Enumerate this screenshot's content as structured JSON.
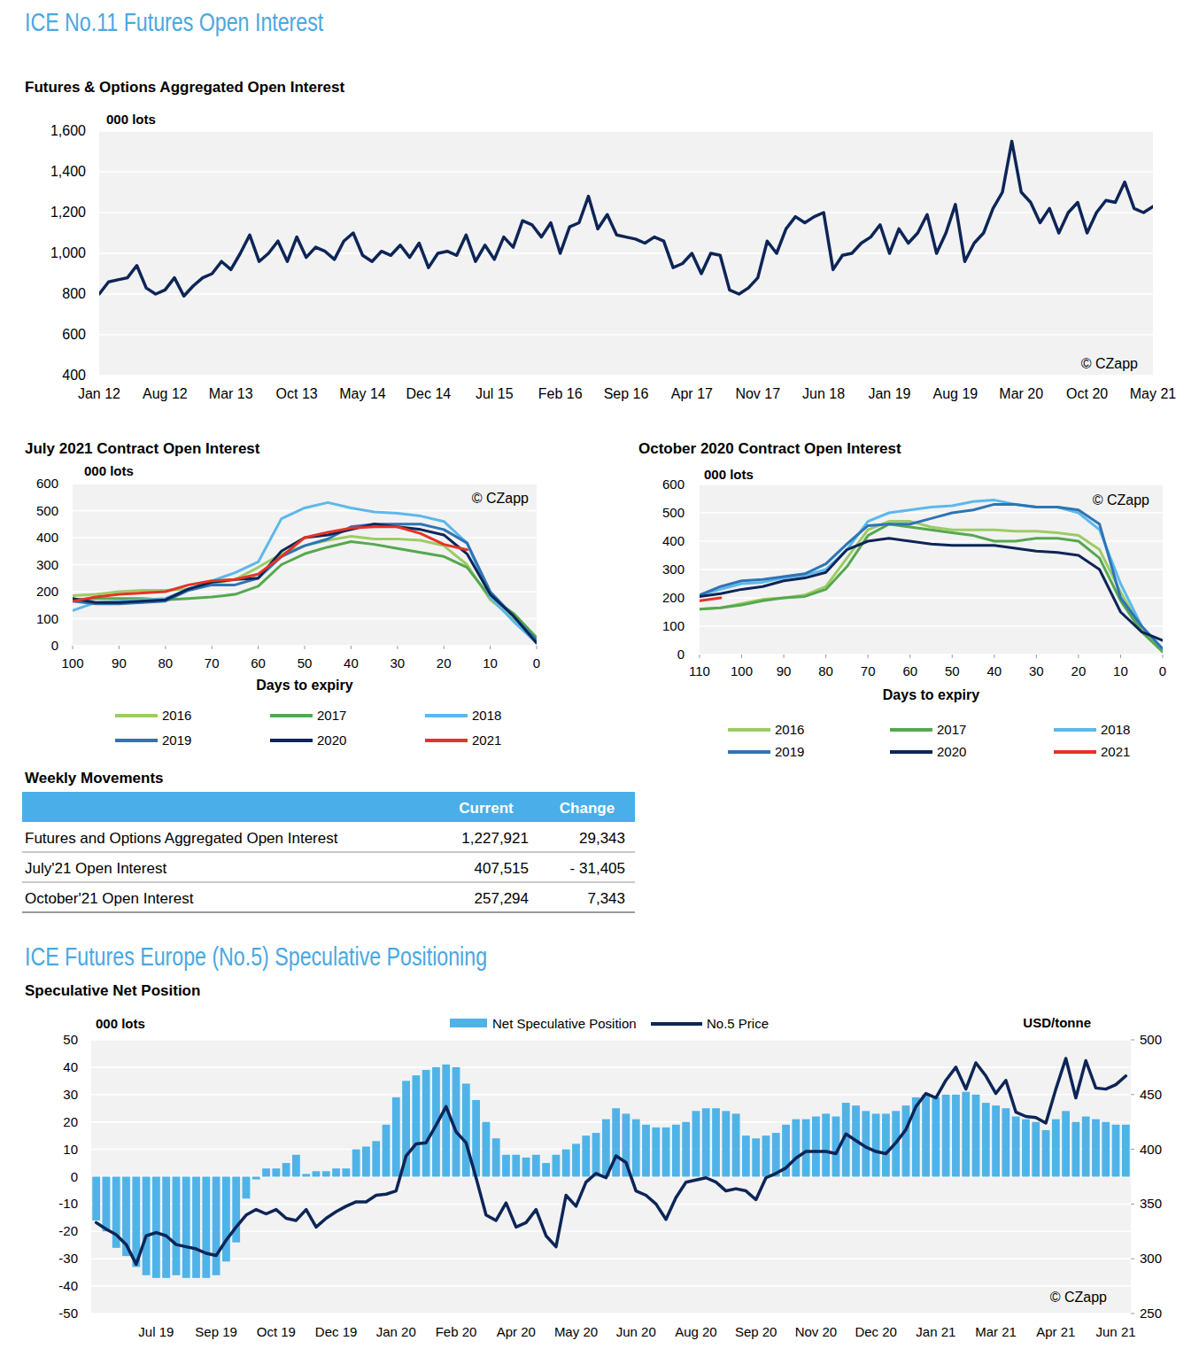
{
  "headings": [
    "ICE No.11 Futures Open Interest",
    "ICE Futures Europe (No.5) Speculative Positioning"
  ],
  "chart_data": [
    {
      "type": "line",
      "title": "Futures & Options Aggregated Open Interest",
      "y_label": "000 lots",
      "annotations": [
        "© CZapp"
      ],
      "categories": [
        "Jan 12",
        null,
        null,
        null,
        null,
        null,
        null,
        "Aug 12",
        null,
        null,
        null,
        null,
        null,
        null,
        "Mar 13",
        null,
        null,
        null,
        null,
        null,
        null,
        "Oct 13",
        null,
        null,
        null,
        null,
        null,
        null,
        "May 14",
        null,
        null,
        null,
        null,
        null,
        null,
        "Dec 14",
        null,
        null,
        null,
        null,
        null,
        null,
        "Jul 15",
        null,
        null,
        null,
        null,
        null,
        null,
        "Feb 16",
        null,
        null,
        null,
        null,
        null,
        null,
        "Sep 16",
        null,
        null,
        null,
        null,
        null,
        null,
        "Apr 17",
        null,
        null,
        null,
        null,
        null,
        null,
        "Nov 17",
        null,
        null,
        null,
        null,
        null,
        null,
        "Jun 18",
        null,
        null,
        null,
        null,
        null,
        null,
        "Jan 19",
        null,
        null,
        null,
        null,
        null,
        null,
        "Aug 19",
        null,
        null,
        null,
        null,
        null,
        null,
        "Mar 20",
        null,
        null,
        null,
        null,
        null,
        null,
        "Oct 20",
        null,
        null,
        null,
        null,
        null,
        null,
        "May 21"
      ],
      "values": [
        800,
        860,
        870,
        880,
        940,
        830,
        800,
        820,
        880,
        790,
        840,
        880,
        900,
        960,
        920,
        1000,
        1090,
        960,
        1000,
        1060,
        960,
        1080,
        980,
        1030,
        1010,
        970,
        1060,
        1100,
        990,
        960,
        1010,
        990,
        1040,
        980,
        1050,
        930,
        1000,
        1010,
        990,
        1090,
        960,
        1040,
        970,
        1080,
        1030,
        1160,
        1140,
        1080,
        1150,
        1000,
        1130,
        1150,
        1280,
        1120,
        1190,
        1090,
        1080,
        1070,
        1050,
        1080,
        1060,
        930,
        950,
        1000,
        900,
        1000,
        990,
        820,
        800,
        830,
        880,
        1060,
        1000,
        1120,
        1180,
        1150,
        1180,
        1200,
        920,
        990,
        1000,
        1050,
        1080,
        1140,
        1000,
        1120,
        1050,
        1100,
        1190,
        1000,
        1100,
        1240,
        960,
        1050,
        1100,
        1220,
        1300,
        1550,
        1300,
        1250,
        1150,
        1220,
        1100,
        1200,
        1250,
        1100,
        1200,
        1260,
        1250,
        1350,
        1220,
        1200,
        1230
      ],
      "color": "#0d2557",
      "ylim": [
        400,
        1600
      ],
      "yticks": [
        400,
        600,
        800,
        {
          "value": 1000,
          "label": "1,000"
        },
        {
          "value": 1200,
          "label": "1,200"
        },
        {
          "value": 1400,
          "label": "1,400"
        },
        {
          "value": 1600,
          "label": "1,600"
        }
      ],
      "grid": true
    },
    {
      "type": "line",
      "title": "July 2021 Contract Open Interest",
      "y_label": "000 lots",
      "x_label": "Days to expiry",
      "annotations": [
        "© CZapp"
      ],
      "x": [
        100,
        95,
        90,
        85,
        80,
        75,
        70,
        65,
        60,
        55,
        50,
        45,
        40,
        35,
        30,
        25,
        20,
        15,
        10,
        5,
        0
      ],
      "xlim": [
        100,
        0
      ],
      "xticks": [
        100,
        90,
        80,
        70,
        60,
        50,
        40,
        30,
        20,
        10,
        0
      ],
      "ylim": [
        0,
        600
      ],
      "yticks": [
        0,
        100,
        200,
        300,
        400,
        500,
        600
      ],
      "grid": true,
      "legend": "bottom",
      "series": [
        {
          "name": "2016",
          "color": "#9ccc65",
          "values": [
            185,
            190,
            200,
            205,
            205,
            210,
            230,
            245,
            290,
            340,
            370,
            390,
            405,
            395,
            395,
            390,
            370,
            300,
            170,
            100,
            30
          ]
        },
        {
          "name": "2017",
          "color": "#55a84f",
          "values": [
            170,
            175,
            175,
            175,
            170,
            175,
            180,
            190,
            220,
            300,
            340,
            365,
            385,
            375,
            360,
            345,
            330,
            290,
            180,
            120,
            30
          ]
        },
        {
          "name": "2018",
          "color": "#5db8ec",
          "values": [
            130,
            160,
            165,
            170,
            175,
            210,
            240,
            270,
            310,
            470,
            510,
            530,
            510,
            495,
            490,
            480,
            460,
            380,
            180,
            90,
            10
          ]
        },
        {
          "name": "2019",
          "color": "#2e74b5",
          "values": [
            165,
            155,
            155,
            160,
            165,
            205,
            225,
            225,
            250,
            330,
            370,
            395,
            440,
            450,
            450,
            450,
            430,
            380,
            200,
            110,
            20
          ]
        },
        {
          "name": "2020",
          "color": "#0d2557",
          "values": [
            175,
            160,
            160,
            165,
            170,
            210,
            235,
            245,
            250,
            350,
            400,
            410,
            430,
            450,
            440,
            430,
            410,
            340,
            190,
            110,
            10
          ]
        },
        {
          "name": "2021",
          "color": "#e53325",
          "values": [
            165,
            180,
            190,
            195,
            200,
            225,
            240,
            245,
            265,
            330,
            400,
            420,
            435,
            440,
            440,
            415,
            375,
            355,
            null,
            null,
            null
          ]
        }
      ]
    },
    {
      "type": "line",
      "title": "October 2020 Contract Open Interest",
      "y_label": "000 lots",
      "x_label": "Days to expiry",
      "annotations": [
        "© CZapp"
      ],
      "x": [
        110,
        105,
        100,
        95,
        90,
        85,
        80,
        75,
        70,
        65,
        60,
        55,
        50,
        45,
        40,
        35,
        30,
        25,
        20,
        15,
        10,
        5,
        0
      ],
      "xlim": [
        110,
        0
      ],
      "xticks": [
        110,
        100,
        90,
        80,
        70,
        60,
        50,
        40,
        30,
        20,
        10,
        0
      ],
      "ylim": [
        0,
        600
      ],
      "yticks": [
        0,
        100,
        200,
        300,
        400,
        500,
        600
      ],
      "grid": true,
      "legend": "bottom",
      "series": [
        {
          "name": "2016",
          "color": "#9ccc65",
          "values": [
            160,
            165,
            180,
            195,
            200,
            210,
            240,
            340,
            440,
            470,
            470,
            450,
            440,
            440,
            440,
            435,
            435,
            430,
            420,
            370,
            220,
            90,
            10
          ]
        },
        {
          "name": "2017",
          "color": "#55a84f",
          "values": [
            160,
            165,
            175,
            190,
            200,
            205,
            230,
            310,
            420,
            460,
            450,
            440,
            430,
            420,
            400,
            400,
            410,
            410,
            400,
            340,
            190,
            80,
            10
          ]
        },
        {
          "name": "2018",
          "color": "#5db8ec",
          "values": [
            210,
            230,
            250,
            255,
            270,
            280,
            300,
            370,
            470,
            500,
            510,
            520,
            525,
            540,
            545,
            530,
            520,
            520,
            500,
            440,
            250,
            100,
            20
          ]
        },
        {
          "name": "2019",
          "color": "#2e74b5",
          "values": [
            210,
            240,
            260,
            265,
            275,
            285,
            320,
            390,
            455,
            460,
            460,
            480,
            500,
            510,
            530,
            530,
            520,
            520,
            510,
            460,
            200,
            100,
            20
          ]
        },
        {
          "name": "2020",
          "color": "#0d2557",
          "values": [
            205,
            215,
            230,
            240,
            260,
            270,
            290,
            370,
            400,
            410,
            400,
            390,
            385,
            385,
            385,
            375,
            365,
            360,
            350,
            300,
            150,
            80,
            50
          ]
        },
        {
          "name": "2021",
          "color": "#e53325",
          "values": [
            190,
            200,
            null,
            null,
            null,
            null,
            null,
            null,
            null,
            null,
            null,
            null,
            null,
            null,
            null,
            null,
            null,
            null,
            null,
            null,
            null,
            null,
            null
          ]
        }
      ]
    },
    {
      "type": "bar",
      "title": "Speculative Net Position",
      "y_label": "000 lots",
      "y2_label": "USD/tonne",
      "annotations": [
        "© CZapp"
      ],
      "categories": [
        null,
        null,
        null,
        null,
        null,
        null,
        "Jul 19",
        null,
        null,
        null,
        null,
        null,
        "Sep 19",
        null,
        null,
        null,
        null,
        null,
        "Oct 19",
        null,
        null,
        null,
        null,
        null,
        "Dec 19",
        null,
        null,
        null,
        null,
        null,
        "Jan 20",
        null,
        null,
        null,
        null,
        null,
        "Feb 20",
        null,
        null,
        null,
        null,
        null,
        "Apr 20",
        null,
        null,
        null,
        null,
        null,
        "May 20",
        null,
        null,
        null,
        null,
        null,
        "Jun 20",
        null,
        null,
        null,
        null,
        null,
        "Aug 20",
        null,
        null,
        null,
        null,
        null,
        "Sep 20",
        null,
        null,
        null,
        null,
        null,
        "Nov 20",
        null,
        null,
        null,
        null,
        null,
        "Dec 20",
        null,
        null,
        null,
        null,
        null,
        "Jan 21",
        null,
        null,
        null,
        null,
        null,
        "Mar 21",
        null,
        null,
        null,
        null,
        null,
        "Apr 21",
        null,
        null,
        null,
        null,
        null,
        "Jun 21",
        null
      ],
      "series": [
        {
          "name": "Net Speculative Position",
          "type": "bar",
          "color": "#4fb3e8",
          "values": [
            -16,
            -20,
            -26,
            -29,
            -33,
            -36,
            -37,
            -37,
            -36,
            -37,
            -37,
            -37,
            -36,
            -31,
            -24,
            -8,
            -1,
            3,
            3,
            5,
            8,
            1,
            2,
            2,
            3,
            3,
            10,
            11,
            13,
            19,
            29,
            35,
            37,
            39,
            40,
            41,
            40,
            34,
            28,
            20,
            14,
            8,
            8,
            7,
            8,
            5,
            8,
            10,
            12,
            15,
            16,
            21,
            25,
            23,
            21,
            19,
            18,
            18,
            19,
            20,
            24,
            25,
            25,
            24,
            23,
            15,
            14,
            15,
            16,
            19,
            21,
            21,
            22,
            23,
            22,
            27,
            26,
            24,
            23,
            23,
            24,
            26,
            29,
            30,
            29,
            30,
            30,
            31,
            30,
            27,
            26,
            25,
            22,
            21,
            20,
            17,
            21,
            24,
            20,
            22,
            21,
            20,
            19,
            19
          ]
        },
        {
          "name": "No.5 Price",
          "type": "line",
          "color": "#0d2557",
          "axis": "y2",
          "values": [
            333,
            327,
            322,
            313,
            295,
            321,
            324,
            321,
            313,
            311,
            309,
            305,
            303,
            317,
            329,
            340,
            345,
            341,
            345,
            337,
            335,
            345,
            329,
            337,
            343,
            348,
            352,
            352,
            358,
            359,
            362,
            394,
            405,
            406,
            422,
            439,
            416,
            406,
            374,
            340,
            335,
            351,
            329,
            333,
            345,
            321,
            311,
            358,
            348,
            370,
            378,
            374,
            394,
            388,
            362,
            358,
            350,
            336,
            356,
            370,
            372,
            374,
            370,
            362,
            364,
            362,
            354,
            374,
            378,
            383,
            392,
            398,
            398,
            398,
            396,
            414,
            408,
            402,
            398,
            396,
            406,
            418,
            439,
            451,
            447,
            463,
            475,
            455,
            479,
            467,
            451,
            463,
            434,
            430,
            429,
            424,
            455,
            483,
            447,
            481,
            456,
            455,
            459,
            467
          ]
        }
      ],
      "ylim": [
        -50,
        50
      ],
      "yticks": [
        -50,
        -40,
        -30,
        -20,
        -10,
        0,
        10,
        20,
        30,
        40,
        50
      ],
      "y2lim": [
        250,
        500
      ],
      "y2ticks": [
        250,
        300,
        350,
        400,
        450,
        500
      ],
      "grid": true,
      "legend": "top"
    }
  ],
  "table": {
    "title": "Weekly Movements",
    "header": [
      "Current",
      "Change"
    ],
    "rows": [
      [
        "Futures and Options Aggregated Open Interest",
        "1,227,921",
        "29,343"
      ],
      [
        "July'21 Open Interest",
        "407,515",
        "- 31,405"
      ],
      [
        "October'21 Open Interest",
        "257,294",
        "7,343"
      ]
    ]
  }
}
